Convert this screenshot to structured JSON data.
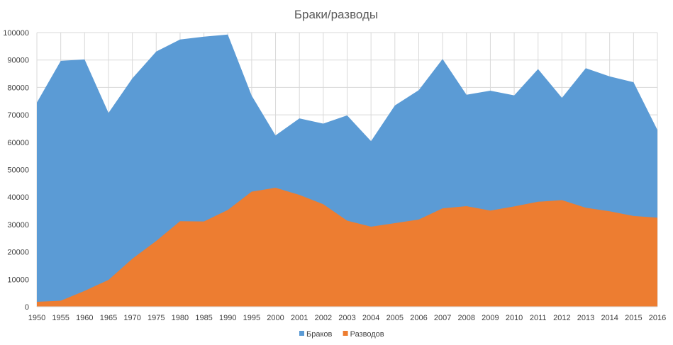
{
  "chart_data": {
    "type": "area",
    "title": "Браки/разводы",
    "stacked": false,
    "grid": true,
    "legend": "bottom",
    "ylim": [
      0,
      100000
    ],
    "yticks": [
      0,
      10000,
      20000,
      30000,
      40000,
      50000,
      60000,
      70000,
      80000,
      90000,
      100000
    ],
    "categories": [
      "1950",
      "1955",
      "1960",
      "1965",
      "1970",
      "1975",
      "1980",
      "1985",
      "1990",
      "1995",
      "2000",
      "2001",
      "2002",
      "2003",
      "2004",
      "2005",
      "2006",
      "2007",
      "2008",
      "2009",
      "2010",
      "2011",
      "2012",
      "2013",
      "2014",
      "2015",
      "2016"
    ],
    "series": [
      {
        "name": "Браков",
        "color": "#5b9bd5",
        "values": [
          74500,
          89700,
          90200,
          70700,
          83300,
          93100,
          97500,
          98500,
          99300,
          77000,
          62500,
          68700,
          66800,
          69800,
          60400,
          73400,
          79000,
          90400,
          77300,
          78800,
          77100,
          86700,
          76200,
          87000,
          84000,
          81900,
          64500
        ]
      },
      {
        "name": "Разводов",
        "color": "#ed7d31",
        "values": [
          1800,
          2200,
          5800,
          9800,
          17500,
          24000,
          31200,
          31100,
          35300,
          42000,
          43400,
          40800,
          37400,
          31400,
          29200,
          30500,
          31800,
          35900,
          36700,
          35100,
          36600,
          38300,
          38900,
          36100,
          34800,
          33100,
          32500
        ]
      }
    ]
  }
}
